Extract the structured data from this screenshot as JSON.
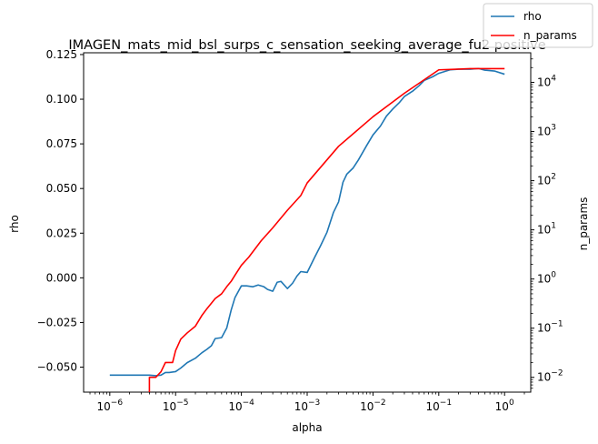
{
  "chart_data": {
    "type": "line",
    "title": "IMAGEN_mats_mid_bsl_surps_c_sensation_seeking_average_fu2 positive",
    "xlabel": "alpha",
    "ylabel": "rho",
    "y2label": "n_params",
    "xscale": "log",
    "xlim": [
      4e-07,
      2.5
    ],
    "ylim": [
      -0.064,
      0.126
    ],
    "y2scale": "log",
    "y2lim": [
      0.005,
      40000
    ],
    "grid": false,
    "legend_position": "top-right",
    "x_tick_labels": [
      "10^-6",
      "10^-5",
      "10^-4",
      "10^-3",
      "10^-2",
      "10^-1",
      "10^0"
    ],
    "x_ticks": [
      1e-06,
      1e-05,
      0.0001,
      0.001,
      0.01,
      0.1,
      1
    ],
    "y_ticks": [
      -0.05,
      -0.025,
      0.0,
      0.025,
      0.05,
      0.075,
      0.1,
      0.125
    ],
    "y_tick_labels": [
      "−0.050",
      "−0.025",
      "0.000",
      "0.025",
      "0.050",
      "0.075",
      "0.100",
      "0.125"
    ],
    "y2_ticks": [
      0.01,
      0.1,
      1,
      10,
      100,
      1000,
      10000
    ],
    "y2_tick_labels": [
      "10^-2",
      "10^-1",
      "10^0",
      "10^1",
      "10^2",
      "10^3",
      "10^4"
    ],
    "series": [
      {
        "name": "rho",
        "axis": "left",
        "color": "#1f77b4",
        "x": [
          1e-06,
          2e-06,
          3e-06,
          4e-06,
          5e-06,
          6e-06,
          7e-06,
          8e-06,
          1e-05,
          1.2e-05,
          1.5e-05,
          2e-05,
          2.5e-05,
          3e-05,
          3.5e-05,
          4e-05,
          5e-05,
          6e-05,
          7e-05,
          8e-05,
          0.0001,
          0.00012,
          0.00015,
          0.00018,
          0.00022,
          0.00025,
          0.0003,
          0.00035,
          0.0004,
          0.0005,
          0.0006,
          0.0007,
          0.0008,
          0.001,
          0.0013,
          0.0016,
          0.002,
          0.0025,
          0.003,
          0.0035,
          0.004,
          0.005,
          0.006,
          0.008,
          0.01,
          0.013,
          0.016,
          0.02,
          0.025,
          0.03,
          0.04,
          0.05,
          0.06,
          0.08,
          0.1,
          0.15,
          0.2,
          0.3,
          0.4,
          0.5,
          0.7,
          1.0
        ],
        "values": [
          -0.0545,
          -0.0545,
          -0.0545,
          -0.0545,
          -0.0548,
          -0.0545,
          -0.053,
          -0.053,
          -0.0525,
          -0.0505,
          -0.0475,
          -0.045,
          -0.042,
          -0.04,
          -0.038,
          -0.034,
          -0.0335,
          -0.028,
          -0.018,
          -0.011,
          -0.0045,
          -0.0045,
          -0.005,
          -0.004,
          -0.005,
          -0.0065,
          -0.0075,
          -0.0025,
          -0.002,
          -0.006,
          -0.003,
          0.001,
          0.0035,
          0.003,
          0.0115,
          0.018,
          0.0255,
          0.0365,
          0.0425,
          0.0535,
          0.058,
          0.0615,
          0.066,
          0.074,
          0.08,
          0.085,
          0.0905,
          0.0945,
          0.098,
          0.1015,
          0.1045,
          0.1075,
          0.1105,
          0.1125,
          0.1145,
          0.1165,
          0.1168,
          0.1168,
          0.1172,
          0.1163,
          0.1158,
          0.114
        ]
      },
      {
        "name": "n_params",
        "axis": "right",
        "color": "#ff0000",
        "x": [
          4e-06,
          4e-06,
          5e-06,
          6e-06,
          7e-06,
          8e-06,
          9e-06,
          1e-05,
          1.2e-05,
          1.5e-05,
          2e-05,
          2.5e-05,
          3e-05,
          4e-05,
          5e-05,
          6e-05,
          7e-05,
          8e-05,
          0.0001,
          0.00013,
          0.0002,
          0.0003,
          0.0005,
          0.0008,
          0.001,
          0.003,
          0.01,
          0.03,
          0.1,
          0.3,
          1.0
        ],
        "values": [
          0.004,
          0.01,
          0.01,
          0.013,
          0.02,
          0.02,
          0.02,
          0.035,
          0.06,
          0.08,
          0.11,
          0.18,
          0.25,
          0.4,
          0.5,
          0.7,
          0.9,
          1.2,
          1.9,
          2.8,
          6,
          11,
          25,
          50,
          90,
          500,
          2000,
          6000,
          18000,
          19000,
          19000
        ]
      }
    ]
  }
}
